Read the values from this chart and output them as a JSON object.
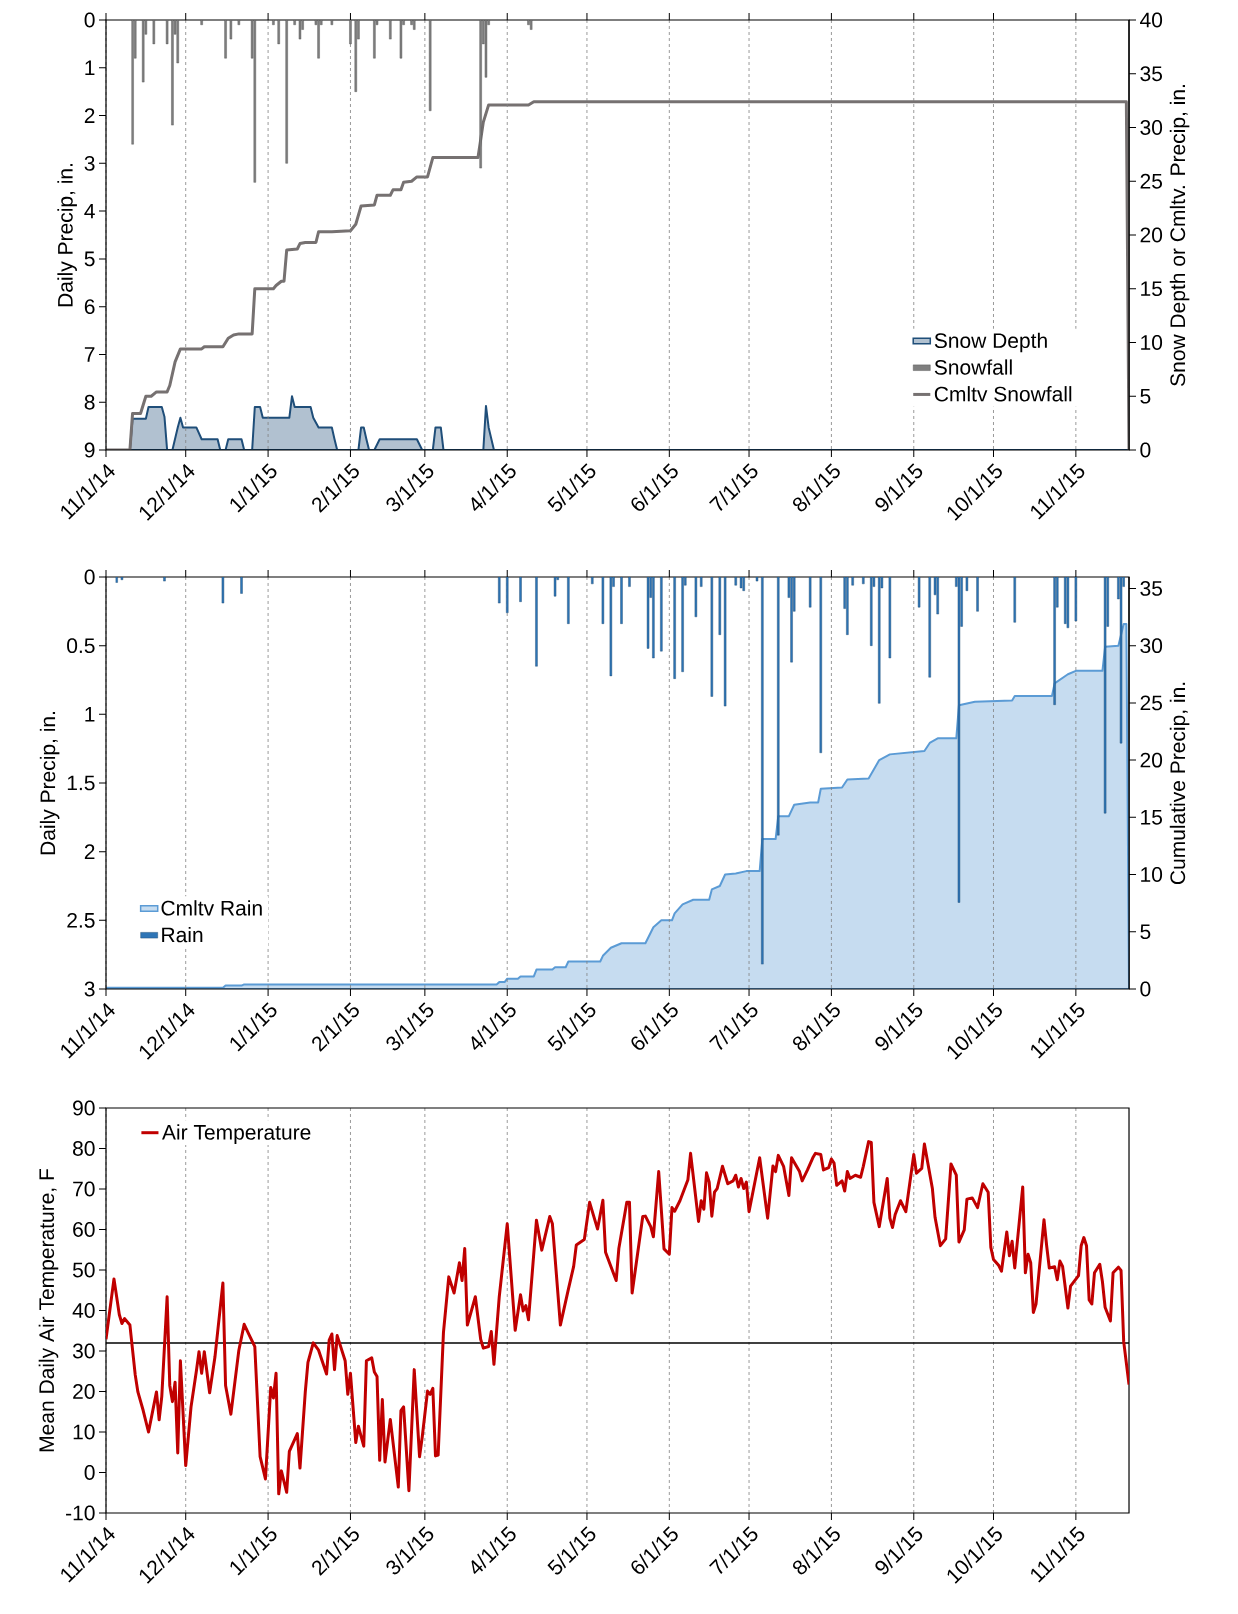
{
  "chart_data": [
    {
      "type": "bar",
      "xlim": [
        "2014-11-01",
        "2015-11-21"
      ],
      "xticks": [
        {
          "value": "2014-11-01",
          "label": "11/1/14"
        },
        {
          "value": "2014-12-01",
          "label": "12/1/14"
        },
        {
          "value": "2015-01-01",
          "label": "1/1/15"
        },
        {
          "value": "2015-02-01",
          "label": "2/1/15"
        },
        {
          "value": "2015-03-01",
          "label": "3/1/15"
        },
        {
          "value": "2015-04-01",
          "label": "4/1/15"
        },
        {
          "value": "2015-05-01",
          "label": "5/1/15"
        },
        {
          "value": "2015-06-01",
          "label": "6/1/15"
        },
        {
          "value": "2015-07-01",
          "label": "7/1/15"
        },
        {
          "value": "2015-08-01",
          "label": "8/1/15"
        },
        {
          "value": "2015-09-01",
          "label": "9/1/15"
        },
        {
          "value": "2015-10-01",
          "label": "10/1/15"
        },
        {
          "value": "2015-11-01",
          "label": "11/1/15"
        }
      ],
      "ylim": [
        9,
        0
      ],
      "yticks": [
        0,
        1,
        2,
        3,
        4,
        5,
        6,
        7,
        8,
        9
      ],
      "ylabel": "Daily Precip, in.",
      "y2lim": [
        0,
        40
      ],
      "y2ticks": [
        0,
        5,
        10,
        15,
        20,
        25,
        30,
        35,
        40
      ],
      "y2label": "Snow Depth or Cmltv. Precip, in.",
      "grid": "x",
      "legend": "bottom right",
      "series": [
        {
          "name": "Snow Depth",
          "type": "area",
          "axis": "y2",
          "color": "#1f4e79",
          "x": [
            "2014-11-01",
            "2014-11-10",
            "2014-11-11",
            "2014-11-16",
            "2014-11-17",
            "2014-11-22",
            "2014-11-23",
            "2014-11-24",
            "2014-11-26",
            "2014-11-28",
            "2014-11-29",
            "2014-11-30",
            "2014-12-05",
            "2014-12-07",
            "2014-12-13",
            "2014-12-14",
            "2014-12-16",
            "2014-12-17",
            "2014-12-22",
            "2014-12-23",
            "2014-12-26",
            "2014-12-27",
            "2014-12-29",
            "2014-12-30",
            "2015-01-09",
            "2015-01-10",
            "2015-01-11",
            "2015-01-17",
            "2015-01-18",
            "2015-01-20",
            "2015-01-25",
            "2015-01-26",
            "2015-01-27",
            "2015-02-04",
            "2015-02-05",
            "2015-02-06",
            "2015-02-07",
            "2015-02-08",
            "2015-02-10",
            "2015-02-12",
            "2015-02-26",
            "2015-02-28",
            "2015-03-04",
            "2015-03-05",
            "2015-03-07",
            "2015-03-08",
            "2015-03-23",
            "2015-03-24",
            "2015-03-25",
            "2015-03-27",
            "2015-11-21"
          ],
          "values": [
            0,
            0,
            2.9,
            2.9,
            4.0,
            4.0,
            3.1,
            0,
            0,
            2.1,
            3.0,
            2.1,
            2.1,
            1.0,
            1.0,
            0,
            0,
            1.0,
            1.0,
            0,
            0,
            4.0,
            4.0,
            3.0,
            3.0,
            5.0,
            4.0,
            4.0,
            3.0,
            2.1,
            2.1,
            1.0,
            0,
            0,
            2.1,
            2.1,
            1.0,
            0,
            0,
            1.0,
            1.0,
            0,
            0,
            2.1,
            2.1,
            0,
            0,
            4.1,
            2.1,
            0,
            0
          ]
        },
        {
          "name": "Snowfall",
          "type": "bar",
          "color": "#7f7f7f",
          "x": [
            "2014-11-11",
            "2014-11-12",
            "2014-11-15",
            "2014-11-16",
            "2014-11-19",
            "2014-11-24",
            "2014-11-26",
            "2014-11-27",
            "2014-11-28",
            "2014-12-07",
            "2014-12-16",
            "2014-12-18",
            "2014-12-21",
            "2014-12-26",
            "2014-12-27",
            "2015-01-03",
            "2015-01-05",
            "2015-01-08",
            "2015-01-11",
            "2015-01-13",
            "2015-01-14",
            "2015-01-19",
            "2015-01-20",
            "2015-01-21",
            "2015-01-25",
            "2015-02-01",
            "2015-02-03",
            "2015-02-04",
            "2015-02-10",
            "2015-02-11",
            "2015-02-16",
            "2015-02-20",
            "2015-02-21",
            "2015-02-24",
            "2015-02-25",
            "2015-03-03",
            "2015-03-22",
            "2015-03-23",
            "2015-03-24",
            "2015-03-25",
            "2015-04-09",
            "2015-04-10"
          ],
          "values": [
            2.6,
            0.8,
            1.3,
            0.3,
            0.5,
            0.5,
            2.2,
            0.3,
            0.9,
            0.1,
            0.8,
            0.4,
            0.1,
            0.8,
            3.4,
            0.1,
            0.5,
            3.0,
            0.1,
            0.4,
            0.2,
            0.1,
            0.8,
            0.1,
            0.1,
            0.5,
            1.5,
            0.4,
            0.8,
            0.1,
            0.4,
            0.8,
            0.1,
            0.1,
            0.2,
            1.9,
            3.1,
            0.5,
            1.2,
            0.1,
            0.1,
            0.2
          ]
        },
        {
          "name": "Cmltv Snowfall",
          "type": "line",
          "axis": "y2",
          "color": "#767171",
          "x": [
            "2014-11-01",
            "2014-11-10",
            "2014-11-11",
            "2014-11-14",
            "2014-11-16",
            "2014-11-18",
            "2014-11-20",
            "2014-11-24",
            "2014-11-25",
            "2014-11-27",
            "2014-11-29",
            "2014-12-07",
            "2014-12-08",
            "2014-12-15",
            "2014-12-17",
            "2014-12-19",
            "2014-12-21",
            "2014-12-26",
            "2014-12-27",
            "2015-01-03",
            "2015-01-04",
            "2015-01-06",
            "2015-01-07",
            "2015-01-08",
            "2015-01-12",
            "2015-01-13",
            "2015-01-15",
            "2015-01-19",
            "2015-01-20",
            "2015-01-25",
            "2015-02-01",
            "2015-02-03",
            "2015-02-05",
            "2015-02-10",
            "2015-02-11",
            "2015-02-16",
            "2015-02-17",
            "2015-02-20",
            "2015-02-21",
            "2015-02-24",
            "2015-02-26",
            "2015-03-02",
            "2015-03-04",
            "2015-03-21",
            "2015-03-23",
            "2015-03-25",
            "2015-04-09",
            "2015-04-11",
            "2015-11-20",
            "2015-11-21"
          ],
          "values": [
            0,
            0,
            3.4,
            3.4,
            5.0,
            5.0,
            5.4,
            5.4,
            6.0,
            8.2,
            9.4,
            9.4,
            9.6,
            9.6,
            10.4,
            10.7,
            10.8,
            10.8,
            15.0,
            15.0,
            15.3,
            15.7,
            15.7,
            18.6,
            18.7,
            19.2,
            19.3,
            19.3,
            20.3,
            20.3,
            20.4,
            21.0,
            22.7,
            22.8,
            23.7,
            23.7,
            24.2,
            24.2,
            24.9,
            25.0,
            25.4,
            25.4,
            27.2,
            27.2,
            30.5,
            32.1,
            32.1,
            32.4,
            32.4,
            0
          ]
        }
      ]
    },
    {
      "type": "bar",
      "xlim": [
        "2014-11-01",
        "2015-11-21"
      ],
      "xticks": [
        {
          "value": "2014-11-01",
          "label": "11/1/14"
        },
        {
          "value": "2014-12-01",
          "label": "12/1/14"
        },
        {
          "value": "2015-01-01",
          "label": "1/1/15"
        },
        {
          "value": "2015-02-01",
          "label": "2/1/15"
        },
        {
          "value": "2015-03-01",
          "label": "3/1/15"
        },
        {
          "value": "2015-04-01",
          "label": "4/1/15"
        },
        {
          "value": "2015-05-01",
          "label": "5/1/15"
        },
        {
          "value": "2015-06-01",
          "label": "6/1/15"
        },
        {
          "value": "2015-07-01",
          "label": "7/1/15"
        },
        {
          "value": "2015-08-01",
          "label": "8/1/15"
        },
        {
          "value": "2015-09-01",
          "label": "9/1/15"
        },
        {
          "value": "2015-10-01",
          "label": "10/1/15"
        },
        {
          "value": "2015-11-01",
          "label": "11/1/15"
        }
      ],
      "ylim": [
        3,
        0
      ],
      "yticks": [
        0,
        0.5,
        1,
        1.5,
        2,
        2.5,
        3
      ],
      "ylabel": "Daily Precip, in.",
      "y2lim": [
        0,
        36
      ],
      "y2ticks": [
        0,
        5,
        10,
        15,
        20,
        25,
        30,
        35
      ],
      "y2label": "Cumulative Precip, in.",
      "grid": "x",
      "legend": "bottom left",
      "series": [
        {
          "name": "Cmltv Rain",
          "type": "area",
          "axis": "y2",
          "color": "#5b9bd5",
          "x": [
            "2014-11-01",
            "2014-12-15",
            "2014-12-16",
            "2014-12-22",
            "2014-12-23",
            "2015-03-28",
            "2015-03-29",
            "2015-03-31",
            "2015-04-01",
            "2015-04-05",
            "2015-04-06",
            "2015-04-11",
            "2015-04-12",
            "2015-04-18",
            "2015-04-19",
            "2015-04-23",
            "2015-04-24",
            "2015-05-06",
            "2015-05-07",
            "2015-05-10",
            "2015-05-14",
            "2015-05-23",
            "2015-05-26",
            "2015-05-29",
            "2015-06-02",
            "2015-06-03",
            "2015-06-06",
            "2015-06-10",
            "2015-06-16",
            "2015-06-17",
            "2015-06-20",
            "2015-06-22",
            "2015-06-26",
            "2015-06-30",
            "2015-07-05",
            "2015-07-06",
            "2015-07-11",
            "2015-07-12",
            "2015-07-16",
            "2015-07-18",
            "2015-07-24",
            "2015-07-27",
            "2015-07-28",
            "2015-08-05",
            "2015-08-07",
            "2015-08-15",
            "2015-08-19",
            "2015-08-23",
            "2015-09-05",
            "2015-09-07",
            "2015-09-10",
            "2015-09-17",
            "2015-09-18",
            "2015-09-24",
            "2015-10-08",
            "2015-10-09",
            "2015-10-23",
            "2015-10-24",
            "2015-10-29",
            "2015-11-01",
            "2015-11-11",
            "2015-11-12",
            "2015-11-17",
            "2015-11-19",
            "2015-11-20",
            "2015-11-21"
          ],
          "values": [
            0.1,
            0.1,
            0.3,
            0.3,
            0.4,
            0.4,
            0.6,
            0.6,
            0.9,
            0.9,
            1.1,
            1.1,
            1.7,
            1.7,
            1.9,
            1.9,
            2.4,
            2.4,
            2.9,
            3.6,
            4.0,
            4.0,
            5.4,
            6.0,
            6.0,
            6.6,
            7.4,
            7.8,
            7.8,
            8.7,
            9.0,
            10.0,
            10.1,
            10.3,
            10.3,
            13.1,
            13.1,
            15.1,
            15.1,
            16.1,
            16.3,
            16.3,
            17.5,
            17.6,
            18.3,
            18.4,
            20.0,
            20.5,
            20.8,
            21.5,
            21.9,
            21.9,
            24.8,
            25.1,
            25.2,
            25.6,
            25.6,
            26.7,
            27.5,
            27.8,
            27.8,
            29.9,
            30.0,
            31.9,
            31.9,
            0
          ]
        },
        {
          "name": "Rain",
          "type": "bar",
          "color": "#2e75b6",
          "x": [
            "2014-11-05",
            "2014-11-07",
            "2014-11-23",
            "2014-12-15",
            "2014-12-22",
            "2015-03-29",
            "2015-04-01",
            "2015-04-06",
            "2015-04-12",
            "2015-04-19",
            "2015-04-20",
            "2015-04-24",
            "2015-05-03",
            "2015-05-07",
            "2015-05-10",
            "2015-05-11",
            "2015-05-14",
            "2015-05-17",
            "2015-05-24",
            "2015-05-25",
            "2015-05-26",
            "2015-05-29",
            "2015-06-03",
            "2015-06-06",
            "2015-06-07",
            "2015-06-11",
            "2015-06-13",
            "2015-06-17",
            "2015-06-20",
            "2015-06-22",
            "2015-06-26",
            "2015-06-28",
            "2015-06-29",
            "2015-07-04",
            "2015-07-06",
            "2015-07-12",
            "2015-07-16",
            "2015-07-17",
            "2015-07-18",
            "2015-07-24",
            "2015-07-28",
            "2015-08-06",
            "2015-08-07",
            "2015-08-09",
            "2015-08-13",
            "2015-08-16",
            "2015-08-17",
            "2015-08-19",
            "2015-08-20",
            "2015-08-23",
            "2015-09-03",
            "2015-09-07",
            "2015-09-09",
            "2015-09-10",
            "2015-09-17",
            "2015-09-18",
            "2015-09-19",
            "2015-09-21",
            "2015-09-25",
            "2015-10-09",
            "2015-10-24",
            "2015-10-25",
            "2015-10-28",
            "2015-10-29",
            "2015-11-01",
            "2015-11-12",
            "2015-11-13",
            "2015-11-17",
            "2015-11-18",
            "2015-11-19"
          ],
          "values": [
            0.04,
            0.02,
            0.03,
            0.19,
            0.12,
            0.19,
            0.26,
            0.18,
            0.65,
            0.14,
            0.02,
            0.34,
            0.05,
            0.34,
            0.72,
            0.07,
            0.34,
            0.07,
            0.52,
            0.15,
            0.59,
            0.54,
            0.74,
            0.69,
            0.06,
            0.29,
            0.07,
            0.87,
            0.42,
            0.94,
            0.06,
            0.08,
            0.1,
            0.03,
            2.82,
            1.88,
            0.15,
            0.62,
            0.25,
            0.22,
            1.28,
            0.23,
            0.42,
            0.06,
            0.05,
            0.5,
            0.07,
            0.92,
            0.08,
            0.59,
            0.22,
            0.73,
            0.13,
            0.27,
            0.07,
            2.37,
            0.36,
            0.1,
            0.25,
            0.33,
            0.93,
            0.22,
            0.34,
            0.37,
            0.32,
            1.72,
            0.36,
            0.16,
            1.21,
            0.07
          ]
        }
      ]
    },
    {
      "type": "line",
      "xlim": [
        "2014-11-01",
        "2015-11-21"
      ],
      "xticks": [
        {
          "value": "2014-11-01",
          "label": "11/1/14"
        },
        {
          "value": "2014-12-01",
          "label": "12/1/14"
        },
        {
          "value": "2015-01-01",
          "label": "1/1/15"
        },
        {
          "value": "2015-02-01",
          "label": "2/1/15"
        },
        {
          "value": "2015-03-01",
          "label": "3/1/15"
        },
        {
          "value": "2015-04-01",
          "label": "4/1/15"
        },
        {
          "value": "2015-05-01",
          "label": "5/1/15"
        },
        {
          "value": "2015-06-01",
          "label": "6/1/15"
        },
        {
          "value": "2015-07-01",
          "label": "7/1/15"
        },
        {
          "value": "2015-08-01",
          "label": "8/1/15"
        },
        {
          "value": "2015-09-01",
          "label": "9/1/15"
        },
        {
          "value": "2015-10-01",
          "label": "10/1/15"
        },
        {
          "value": "2015-11-01",
          "label": "11/1/15"
        }
      ],
      "ylim": [
        -10,
        90
      ],
      "yticks": [
        -10,
        0,
        10,
        20,
        30,
        40,
        50,
        60,
        70,
        80,
        90
      ],
      "ylabel": "Mean Daily Air Temperature, F",
      "grid": "x",
      "legend": "top left",
      "ref_lines": [
        {
          "axis": "y",
          "value": 32,
          "color": "#000000"
        }
      ],
      "series": [
        {
          "name": "Air Temperature",
          "color": "#c00000",
          "x": [
            "2014-11-01",
            "2014-11-04",
            "2014-11-06",
            "2014-11-07",
            "2014-11-08",
            "2014-11-10",
            "2014-11-12",
            "2014-11-13",
            "2014-11-15",
            "2014-11-17",
            "2014-11-20",
            "2014-11-21",
            "2014-11-22",
            "2014-11-24",
            "2014-11-25",
            "2014-11-26",
            "2014-11-27",
            "2014-11-28",
            "2014-11-29",
            "2014-12-01",
            "2014-12-03",
            "2014-12-05",
            "2014-12-06",
            "2014-12-07",
            "2014-12-08",
            "2014-12-10",
            "2014-12-12",
            "2014-12-15",
            "2014-12-16",
            "2014-12-18",
            "2014-12-21",
            "2014-12-23",
            "2014-12-25",
            "2014-12-27",
            "2014-12-29",
            "2014-12-31",
            "2015-01-02",
            "2015-01-03",
            "2015-01-04",
            "2015-01-05",
            "2015-01-06",
            "2015-01-08",
            "2015-01-09",
            "2015-01-12",
            "2015-01-13",
            "2015-01-15",
            "2015-01-16",
            "2015-01-18",
            "2015-01-20",
            "2015-01-23",
            "2015-01-24",
            "2015-01-25",
            "2015-01-26",
            "2015-01-27",
            "2015-01-30",
            "2015-01-31",
            "2015-02-01",
            "2015-02-03",
            "2015-02-04",
            "2015-02-06",
            "2015-02-07",
            "2015-02-09",
            "2015-02-10",
            "2015-02-11",
            "2015-02-12",
            "2015-02-13",
            "2015-02-14",
            "2015-02-16",
            "2015-02-19",
            "2015-02-20",
            "2015-02-21",
            "2015-02-23",
            "2015-02-25",
            "2015-02-27",
            "2015-02-28",
            "2015-03-02",
            "2015-03-03",
            "2015-03-04",
            "2015-03-05",
            "2015-03-06",
            "2015-03-08",
            "2015-03-10",
            "2015-03-12",
            "2015-03-14",
            "2015-03-15",
            "2015-03-16",
            "2015-03-17",
            "2015-03-20",
            "2015-03-22",
            "2015-03-23",
            "2015-03-25",
            "2015-03-26",
            "2015-03-27",
            "2015-03-29",
            "2015-04-01",
            "2015-04-04",
            "2015-04-06",
            "2015-04-07",
            "2015-04-08",
            "2015-04-09",
            "2015-04-12",
            "2015-04-14",
            "2015-04-17",
            "2015-04-18",
            "2015-04-21",
            "2015-04-24",
            "2015-04-26",
            "2015-04-27",
            "2015-04-30",
            "2015-05-02",
            "2015-05-05",
            "2015-05-07",
            "2015-05-08",
            "2015-05-12",
            "2015-05-13",
            "2015-05-16",
            "2015-05-17",
            "2015-05-18",
            "2015-05-22",
            "2015-05-23",
            "2015-05-25",
            "2015-05-26",
            "2015-05-28",
            "2015-05-30",
            "2015-06-01",
            "2015-06-02",
            "2015-06-03",
            "2015-06-05",
            "2015-06-08",
            "2015-06-09",
            "2015-06-12",
            "2015-06-13",
            "2015-06-14",
            "2015-06-15",
            "2015-06-16",
            "2015-06-17",
            "2015-06-18",
            "2015-06-19",
            "2015-06-21",
            "2015-06-23",
            "2015-06-25",
            "2015-06-26",
            "2015-06-27",
            "2015-06-28",
            "2015-06-29",
            "2015-06-30",
            "2015-07-01",
            "2015-07-05",
            "2015-07-08",
            "2015-07-10",
            "2015-07-11",
            "2015-07-12",
            "2015-07-14",
            "2015-07-16",
            "2015-07-17",
            "2015-07-20",
            "2015-07-21",
            "2015-07-23",
            "2015-07-25",
            "2015-07-26",
            "2015-07-28",
            "2015-07-29",
            "2015-07-31",
            "2015-08-01",
            "2015-08-02",
            "2015-08-03",
            "2015-08-05",
            "2015-08-06",
            "2015-08-07",
            "2015-08-08",
            "2015-08-10",
            "2015-08-12",
            "2015-08-13",
            "2015-08-15",
            "2015-08-16",
            "2015-08-17",
            "2015-08-19",
            "2015-08-22",
            "2015-08-23",
            "2015-08-24",
            "2015-08-25",
            "2015-08-27",
            "2015-08-29",
            "2015-09-01",
            "2015-09-02",
            "2015-09-04",
            "2015-09-05",
            "2015-09-08",
            "2015-09-09",
            "2015-09-11",
            "2015-09-13",
            "2015-09-15",
            "2015-09-17",
            "2015-09-18",
            "2015-09-20",
            "2015-09-21",
            "2015-09-23",
            "2015-09-25",
            "2015-09-26",
            "2015-09-27",
            "2015-09-29",
            "2015-09-30",
            "2015-10-01",
            "2015-10-03",
            "2015-10-04",
            "2015-10-06",
            "2015-10-07",
            "2015-10-08",
            "2015-10-09",
            "2015-10-12",
            "2015-10-13",
            "2015-10-14",
            "2015-10-15",
            "2015-10-16",
            "2015-10-17",
            "2015-10-20",
            "2015-10-21",
            "2015-10-22",
            "2015-10-24",
            "2015-10-25",
            "2015-10-26",
            "2015-10-27",
            "2015-10-29",
            "2015-10-30",
            "2015-11-02",
            "2015-11-03",
            "2015-11-04",
            "2015-11-05",
            "2015-11-06",
            "2015-11-07",
            "2015-11-08",
            "2015-11-10",
            "2015-11-11",
            "2015-11-12",
            "2015-11-14",
            "2015-11-15",
            "2015-11-17",
            "2015-11-18",
            "2015-11-19",
            "2015-11-21"
          ],
          "values": [
            32.9,
            47.8,
            39,
            36.8,
            38,
            36.4,
            24.1,
            19.9,
            15.3,
            10.0,
            19.9,
            13,
            18.8,
            43.4,
            21.5,
            17.5,
            22.3,
            4.8,
            27.6,
            1.7,
            16.2,
            25,
            29.8,
            24.5,
            29.8,
            19.7,
            28.5,
            46.8,
            21.5,
            14.4,
            30.2,
            36.6,
            33.8,
            31.1,
            3.9,
            -1.6,
            21,
            18.4,
            24.5,
            -5.3,
            0.4,
            -4.9,
            5.2,
            9.6,
            1.1,
            19.9,
            27.2,
            32,
            30.2,
            24.3,
            32.7,
            34.2,
            25.4,
            33.8,
            27.6,
            19.3,
            24.5,
            7.4,
            11.4,
            6.5,
            27.6,
            28.3,
            24.8,
            23.7,
            3,
            18,
            2.6,
            13.1,
            -3.6,
            15.3,
            16.2,
            -4.5,
            25.4,
            3.9,
            8.7,
            20.1,
            19.3,
            20.8,
            4.1,
            4.3,
            34.6,
            48.3,
            44.3,
            51.8,
            47.4,
            55.3,
            36.4,
            43.4,
            32.9,
            30.7,
            31.1,
            34.8,
            26.7,
            43.4,
            61.4,
            35.1,
            43.9,
            39.9,
            41.2,
            37.7,
            62.3,
            54.9,
            63.2,
            61.4,
            36.4,
            45.2,
            50.9,
            56.2,
            57.5,
            66.7,
            60.1,
            67.2,
            54.4,
            47.4,
            55.3,
            66.7,
            66.7,
            44.3,
            63.2,
            63.3,
            60.7,
            58.2,
            74.3,
            55.2,
            53.9,
            65.4,
            64.5,
            67.1,
            72.3,
            78.8,
            62,
            67.1,
            65,
            74,
            71.7,
            63.3,
            69.2,
            70.1,
            75.6,
            71.3,
            72,
            73.4,
            70.5,
            72.6,
            70.1,
            71.7,
            64.4,
            77.7,
            62.8,
            75.7,
            74.3,
            78.3,
            75.6,
            68.4,
            77.7,
            74.3,
            72,
            74.7,
            77.7,
            78.8,
            78.5,
            74.7,
            75.3,
            77.4,
            76.4,
            70.9,
            72,
            69.5,
            74.3,
            72.6,
            73.4,
            72.9,
            75.6,
            81.7,
            81.5,
            66.7,
            60.7,
            72.6,
            62.8,
            60.5,
            63.7,
            67.1,
            64.4,
            78.5,
            73.9,
            75.1,
            81.1,
            70.1,
            63,
            56,
            57.7,
            76.2,
            73.4,
            56.9,
            59.9,
            67.5,
            67.8,
            65.4,
            68.4,
            71.3,
            69.2,
            55.6,
            52.6,
            51.1,
            49.7,
            59.4,
            53.5,
            57.1,
            50.5,
            70.5,
            49.3,
            53.9,
            51.8,
            39.5,
            41.6,
            62.4,
            56,
            50.5,
            50.8,
            47.6,
            52.2,
            50.9,
            40.6,
            46,
            48.6,
            56,
            58,
            56,
            42.6,
            41.6,
            49.3,
            51.4,
            47.1,
            40.8,
            37.4,
            49.3,
            50.7,
            49.9,
            32.3,
            21.7
          ]
        }
      ]
    }
  ]
}
